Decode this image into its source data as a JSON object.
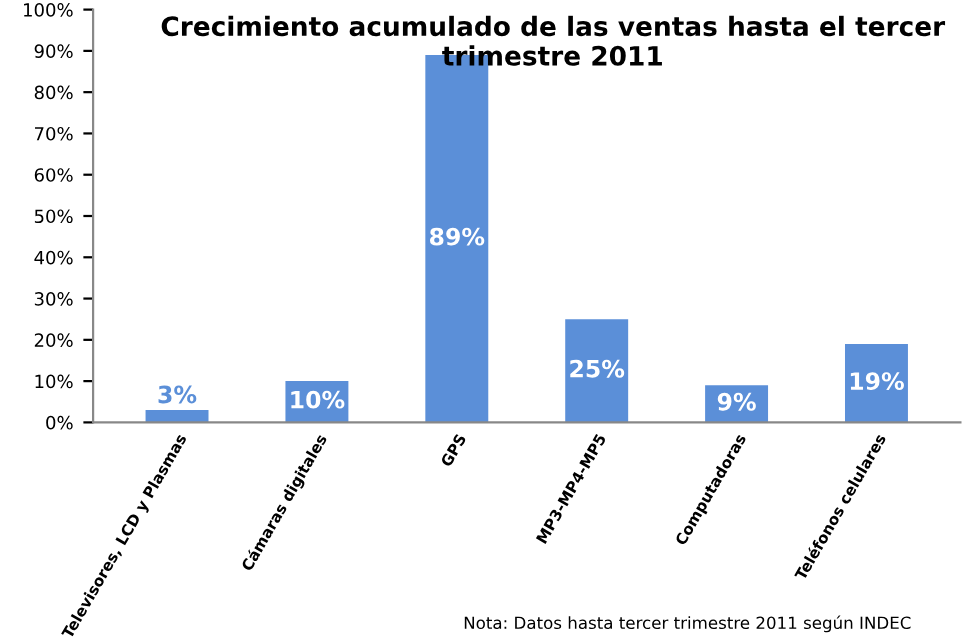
{
  "chart_data": {
    "type": "bar",
    "title": "Crecimiento acumulado de las ventas hasta el tercer trimestre 2011",
    "categories": [
      "Televisores, LCD y Plasmas",
      "Cámaras digitales",
      "GPS",
      "MP3-MP4-MP5",
      "Computadoras",
      "Teléfonos celulares"
    ],
    "values": [
      3,
      10,
      89,
      25,
      9,
      19
    ],
    "color": "#5b8fd8",
    "ylim": [
      0,
      100
    ],
    "yticks": [
      {
        "value": 0,
        "label": "0%"
      },
      {
        "value": 10,
        "label": "10%"
      },
      {
        "value": 20,
        "label": "20%"
      },
      {
        "value": 30,
        "label": "30%"
      },
      {
        "value": 40,
        "label": "40%"
      },
      {
        "value": 50,
        "label": "50%"
      },
      {
        "value": 60,
        "label": "60%"
      },
      {
        "value": 70,
        "label": "70%"
      },
      {
        "value": 80,
        "label": "80%"
      },
      {
        "value": 90,
        "label": "90%"
      },
      {
        "value": 100,
        "label": "100%"
      }
    ],
    "value_labels": [
      "3%",
      "10%",
      "89%",
      "25%",
      "9%",
      "19%"
    ],
    "annotations": [
      "Nota: Datos hasta tercer trimestre 2011 según INDEC"
    ]
  }
}
